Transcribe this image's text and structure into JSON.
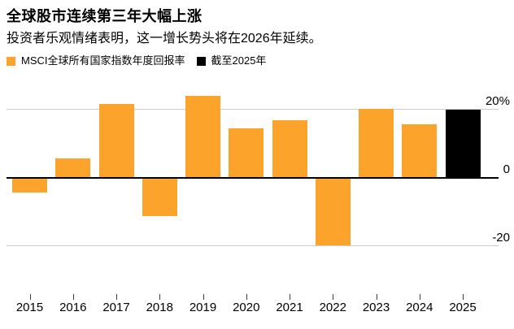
{
  "title": "全球股市连续第三年大幅上涨",
  "subtitle": "投资者乐观情绪表明，这一增长势头将在2026年延续。",
  "legend": {
    "items": [
      {
        "label": "MSCI全球所有国家指数年度回报率",
        "color": "#FCA32C",
        "swatch": "orange-square"
      },
      {
        "label": "截至2025年",
        "color": "#000000",
        "swatch": "black-square"
      }
    ]
  },
  "colors": {
    "bar_orange": "#FCA32C",
    "bar_black": "#000000",
    "gridline": "#CCCCCC",
    "zero_line": "#000000",
    "tick": "#3C3C3C",
    "text": "#000000",
    "background": "#FFFFFF"
  },
  "chart_data": {
    "type": "bar",
    "title": "全球股市连续第三年大幅上涨",
    "subtitle": "投资者乐观情绪表明，这一增长势头将在2026年延续。",
    "series_name": "MSCI全球所有国家指数年度回报率",
    "highlight": {
      "category": "2025",
      "label": "截至2025年"
    },
    "categories": [
      "2015",
      "2016",
      "2017",
      "2018",
      "2019",
      "2020",
      "2021",
      "2022",
      "2023",
      "2024",
      "2025"
    ],
    "values": [
      -4.3,
      5.6,
      21.6,
      -11.2,
      24.0,
      14.3,
      16.8,
      -19.8,
      20.1,
      15.7,
      20.0
    ],
    "unit": "%",
    "y_ticks": [
      {
        "label": "20%",
        "value": 20
      },
      {
        "label": "0",
        "value": 0
      },
      {
        "label": "-20",
        "value": -20
      }
    ],
    "ylim": [
      -36,
      26
    ],
    "grid": "horizontal",
    "legend_position": "top-left"
  }
}
